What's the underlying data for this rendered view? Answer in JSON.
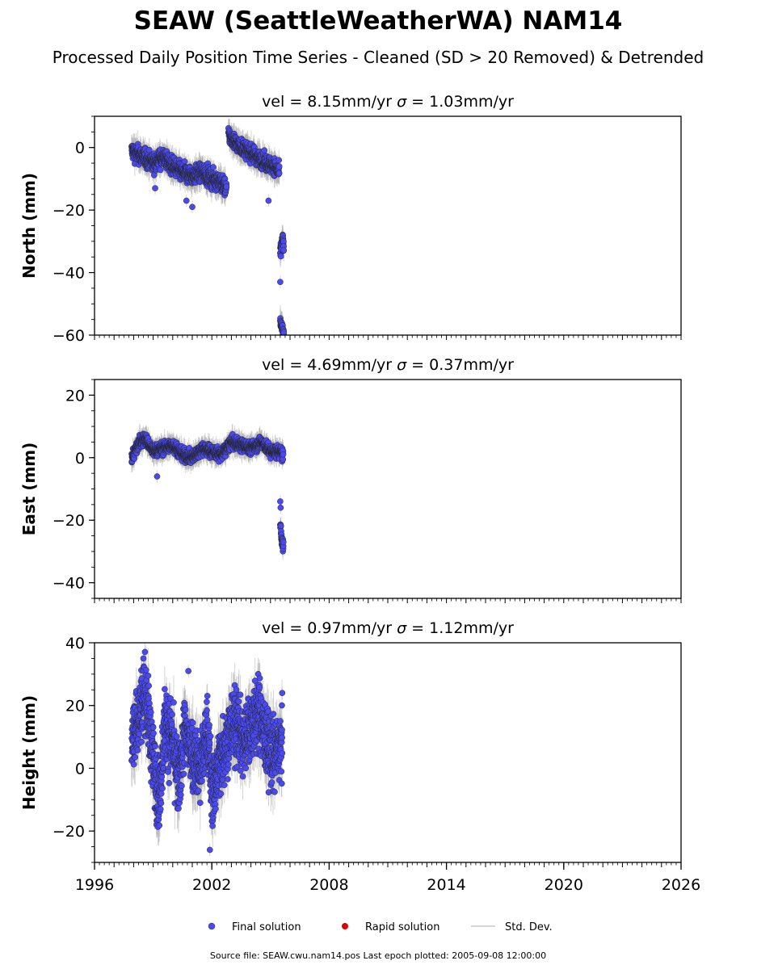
{
  "figure": {
    "title": "SEAW (SeattleWeatherWA) NAM14",
    "subtitle": "Processed Daily Position Time Series - Cleaned (SD > 20 Removed) & Detrended",
    "source_note": "Source file: SEAW.cwu.nam14.pos  Last epoch plotted: 2005-09-08 12:00:00"
  },
  "legend": {
    "placement": "bottom-center",
    "items": [
      {
        "label": "Final solution",
        "color": "#4a4af0",
        "marker": "circle"
      },
      {
        "label": "Rapid solution",
        "color": "#e00000",
        "marker": "circle"
      },
      {
        "label": "Std. Dev.",
        "color": "#cccccc",
        "marker": "line"
      }
    ]
  },
  "chart_data": [
    {
      "type": "scatter",
      "panel": "north",
      "title_prefix": "vel = 8.15mm/yr",
      "sigma_symbol": "σ",
      "title_suffix": " = 1.03mm/yr",
      "ylabel": "North (mm)",
      "ylim": [
        -60,
        10
      ],
      "yticks": [
        0,
        -20,
        -40,
        -60
      ],
      "ytick_labels": [
        "0",
        "−20",
        "−40",
        "−60"
      ],
      "xlim": [
        1996,
        2026
      ],
      "series": [
        {
          "name": "Final solution",
          "color": "#4a4af0",
          "segments": [
            {
              "x": [
                1997.9,
                1998.5,
                1999.0,
                1999.5,
                2000.0,
                2000.5,
                2001.0,
                2001.5,
                2002.0,
                2002.4,
                2002.75
              ],
              "y": [
                -1,
                -3,
                -5,
                -3,
                -6,
                -8,
                -9,
                -8,
                -10,
                -11,
                -13
              ],
              "noise": 2.0,
              "err": 3
            },
            {
              "x": [
                2002.85,
                2003.3,
                2003.8,
                2004.3,
                2004.8,
                2005.2,
                2005.45
              ],
              "y": [
                4,
                1,
                -1,
                -3,
                -5,
                -6,
                -8
              ],
              "noise": 1.8,
              "err": 3
            },
            {
              "x": [
                2005.5,
                2005.56,
                2005.62,
                2005.68
              ],
              "y": [
                -34,
                -32,
                -29,
                -32
              ],
              "noise": 1.5,
              "err": 3
            },
            {
              "x": [
                2005.5,
                2005.6,
                2005.68
              ],
              "y": [
                -56,
                -58,
                -59
              ],
              "noise": 1.2,
              "err": 3
            }
          ],
          "outliers": {
            "x": [
              1999.1,
              2000.7,
              2001.0,
              2004.9,
              2005.5
            ],
            "y": [
              -13,
              -17,
              -19,
              -17,
              -43
            ]
          }
        }
      ]
    },
    {
      "type": "scatter",
      "panel": "east",
      "title_prefix": "vel = 4.69mm/yr",
      "sigma_symbol": "σ",
      "title_suffix": " = 0.37mm/yr",
      "ylabel": "East (mm)",
      "ylim": [
        -45,
        25
      ],
      "yticks": [
        20,
        0,
        -20,
        -40
      ],
      "ytick_labels": [
        "20",
        "0",
        "−20",
        "−40"
      ],
      "xlim": [
        1996,
        2026
      ],
      "series": [
        {
          "name": "Final solution",
          "color": "#4a4af0",
          "segments": [
            {
              "x": [
                1997.9,
                1998.3,
                1998.6,
                1999.0,
                1999.5,
                2000.0,
                2000.5,
                2001.0,
                2001.5,
                2002.0,
                2002.5,
                2003.0,
                2003.5,
                2004.0,
                2004.5,
                2005.0,
                2005.4,
                2005.65
              ],
              "y": [
                0,
                5,
                6,
                2,
                3,
                4,
                1,
                0,
                3,
                2,
                1,
                5,
                4,
                3,
                5,
                2,
                2,
                1
              ],
              "noise": 1.4,
              "err": 2.5
            },
            {
              "x": [
                2005.5,
                2005.58,
                2005.66
              ],
              "y": [
                -22,
                -26,
                -29
              ],
              "noise": 1.5,
              "err": 2
            }
          ],
          "outliers": {
            "x": [
              1999.2,
              2005.5,
              2005.52
            ],
            "y": [
              -6,
              -14,
              -16
            ]
          }
        }
      ]
    },
    {
      "type": "scatter",
      "panel": "height",
      "title_prefix": "vel = 0.97mm/yr",
      "sigma_symbol": "σ",
      "title_suffix": " = 1.12mm/yr",
      "ylabel": "Height (mm)",
      "ylim": [
        -30,
        40
      ],
      "yticks": [
        40,
        20,
        0,
        -20
      ],
      "ytick_labels": [
        "40",
        "20",
        "0",
        "−20"
      ],
      "xlim": [
        1996,
        2026
      ],
      "xticks": [
        1996,
        2002,
        2008,
        2014,
        2020,
        2026
      ],
      "xtick_labels": [
        "1996",
        "2002",
        "2008",
        "2014",
        "2020",
        "2026"
      ],
      "series": [
        {
          "name": "Final solution",
          "color": "#4a4af0",
          "segments": [
            {
              "x": [
                1997.9,
                1998.3,
                1998.6,
                1999.0,
                1999.3,
                1999.6,
                2000.0,
                2000.3,
                2000.6,
                2001.0,
                2001.4,
                2001.8,
                2002.0,
                2002.4,
                2002.8,
                2003.2,
                2003.6,
                2004.0,
                2004.4,
                2004.8,
                2005.2,
                2005.6
              ],
              "y": [
                8,
                18,
                25,
                2,
                -10,
                15,
                8,
                -5,
                12,
                5,
                0,
                12,
                -8,
                2,
                10,
                15,
                8,
                14,
                18,
                8,
                4,
                8
              ],
              "noise": 8.0,
              "err": 6
            }
          ],
          "outliers": {
            "x": [
              1998.5,
              2000.8,
              2001.9,
              2005.6
            ],
            "y": [
              35,
              31,
              -26,
              24
            ]
          }
        }
      ]
    }
  ]
}
